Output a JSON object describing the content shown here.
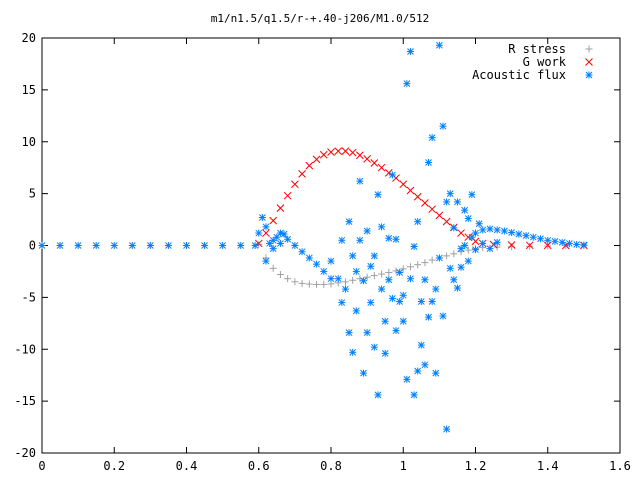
{
  "chart_data": {
    "type": "scatter",
    "title": "m1/n1.5/q1.5/r-+.40-j206/M1.0/512",
    "xlabel": "",
    "ylabel": "",
    "xlim": [
      0,
      1.6
    ],
    "ylim": [
      -20,
      20
    ],
    "xticks": [
      "0",
      "0.2",
      "0.4",
      "0.6",
      "0.8",
      "1",
      "1.2",
      "1.4",
      "1.6"
    ],
    "yticks": [
      "20",
      "15",
      "10",
      "5",
      "0",
      "-5",
      "-10",
      "-15",
      "-20"
    ],
    "grid": false,
    "legend_position": "top-right",
    "series": [
      {
        "name": "R stress",
        "marker": "plus",
        "color": "#a0a0a0",
        "points": [
          [
            0.6,
            0.1
          ],
          [
            0.62,
            -1.2
          ],
          [
            0.64,
            -2.2
          ],
          [
            0.66,
            -2.8
          ],
          [
            0.68,
            -3.2
          ],
          [
            0.7,
            -3.5
          ],
          [
            0.72,
            -3.65
          ],
          [
            0.74,
            -3.72
          ],
          [
            0.76,
            -3.75
          ],
          [
            0.78,
            -3.75
          ],
          [
            0.8,
            -3.7
          ],
          [
            0.82,
            -3.6
          ],
          [
            0.84,
            -3.5
          ],
          [
            0.86,
            -3.35
          ],
          [
            0.88,
            -3.2
          ],
          [
            0.9,
            -3.05
          ],
          [
            0.92,
            -2.9
          ],
          [
            0.94,
            -2.75
          ],
          [
            0.96,
            -2.6
          ],
          [
            0.98,
            -2.45
          ],
          [
            1.0,
            -2.25
          ],
          [
            1.02,
            -2.05
          ],
          [
            1.04,
            -1.85
          ],
          [
            1.06,
            -1.65
          ],
          [
            1.08,
            -1.4
          ],
          [
            1.1,
            -1.2
          ],
          [
            1.12,
            -1.0
          ],
          [
            1.14,
            -0.8
          ],
          [
            1.16,
            -0.6
          ],
          [
            1.18,
            -0.45
          ],
          [
            1.2,
            -0.3
          ],
          [
            1.22,
            -0.2
          ],
          [
            1.26,
            -0.15
          ],
          [
            1.3,
            -0.12
          ],
          [
            1.35,
            -0.08
          ],
          [
            1.4,
            -0.05
          ],
          [
            1.45,
            -0.02
          ],
          [
            1.5,
            0.0
          ]
        ]
      },
      {
        "name": "G work",
        "marker": "cross",
        "color": "#ff0000",
        "points": [
          [
            0.6,
            0.2
          ],
          [
            0.62,
            1.2
          ],
          [
            0.64,
            2.4
          ],
          [
            0.66,
            3.6
          ],
          [
            0.68,
            4.8
          ],
          [
            0.7,
            5.9
          ],
          [
            0.72,
            6.9
          ],
          [
            0.74,
            7.7
          ],
          [
            0.76,
            8.3
          ],
          [
            0.78,
            8.75
          ],
          [
            0.8,
            9.0
          ],
          [
            0.82,
            9.1
          ],
          [
            0.84,
            9.1
          ],
          [
            0.86,
            8.95
          ],
          [
            0.88,
            8.7
          ],
          [
            0.9,
            8.35
          ],
          [
            0.92,
            7.95
          ],
          [
            0.94,
            7.5
          ],
          [
            0.96,
            7.0
          ],
          [
            0.98,
            6.5
          ],
          [
            1.0,
            5.9
          ],
          [
            1.02,
            5.3
          ],
          [
            1.04,
            4.7
          ],
          [
            1.06,
            4.1
          ],
          [
            1.08,
            3.5
          ],
          [
            1.1,
            2.9
          ],
          [
            1.12,
            2.3
          ],
          [
            1.14,
            1.75
          ],
          [
            1.16,
            1.2
          ],
          [
            1.18,
            0.8
          ],
          [
            1.2,
            0.4
          ],
          [
            1.22,
            0.2
          ],
          [
            1.25,
            0.1
          ],
          [
            1.3,
            0.05
          ],
          [
            1.35,
            0.02
          ],
          [
            1.4,
            0.01
          ],
          [
            1.45,
            0.0
          ],
          [
            1.5,
            0.0
          ]
        ]
      },
      {
        "name": "Acoustic flux",
        "marker": "star",
        "color": "#0080ff",
        "points": [
          [
            0.0,
            0.0
          ],
          [
            0.05,
            0.0
          ],
          [
            0.1,
            0.0
          ],
          [
            0.15,
            0.0
          ],
          [
            0.2,
            0.0
          ],
          [
            0.25,
            0.0
          ],
          [
            0.3,
            0.0
          ],
          [
            0.35,
            0.0
          ],
          [
            0.4,
            0.0
          ],
          [
            0.45,
            0.0
          ],
          [
            0.5,
            0.0
          ],
          [
            0.55,
            0.0
          ],
          [
            0.59,
            0.0
          ],
          [
            0.6,
            1.2
          ],
          [
            0.61,
            2.7
          ],
          [
            0.62,
            1.8
          ],
          [
            0.63,
            0.2
          ],
          [
            0.64,
            0.5
          ],
          [
            0.65,
            0.8
          ],
          [
            0.66,
            1.2
          ],
          [
            0.67,
            1.1
          ],
          [
            0.68,
            0.6
          ],
          [
            0.7,
            0.0
          ],
          [
            0.72,
            -0.6
          ],
          [
            0.74,
            -1.2
          ],
          [
            0.76,
            -1.8
          ],
          [
            0.78,
            -2.5
          ],
          [
            0.8,
            -3.2
          ],
          [
            0.62,
            -1.5
          ],
          [
            0.64,
            -0.3
          ],
          [
            0.66,
            0.2
          ],
          [
            0.8,
            -1.5
          ],
          [
            0.82,
            -3.2
          ],
          [
            0.83,
            0.5
          ],
          [
            0.83,
            -5.5
          ],
          [
            0.84,
            -4.2
          ],
          [
            0.85,
            -8.4
          ],
          [
            0.85,
            2.3
          ],
          [
            0.86,
            -1.0
          ],
          [
            0.86,
            -10.3
          ],
          [
            0.87,
            -6.3
          ],
          [
            0.87,
            -2.5
          ],
          [
            0.88,
            6.2
          ],
          [
            0.88,
            0.5
          ],
          [
            0.89,
            -12.3
          ],
          [
            0.89,
            -3.4
          ],
          [
            0.9,
            -8.4
          ],
          [
            0.9,
            1.4
          ],
          [
            0.91,
            -5.5
          ],
          [
            0.91,
            -2.0
          ],
          [
            0.92,
            -1.0
          ],
          [
            0.92,
            -9.8
          ],
          [
            0.93,
            -14.4
          ],
          [
            0.93,
            4.9
          ],
          [
            0.94,
            -4.2
          ],
          [
            0.94,
            1.8
          ],
          [
            0.95,
            -7.3
          ],
          [
            0.95,
            -10.4
          ],
          [
            0.96,
            -3.3
          ],
          [
            0.96,
            0.7
          ],
          [
            0.97,
            -5.1
          ],
          [
            0.97,
            6.8
          ],
          [
            0.98,
            -8.2
          ],
          [
            0.98,
            0.6
          ],
          [
            0.99,
            -2.6
          ],
          [
            0.99,
            -5.4
          ],
          [
            1.0,
            -7.3
          ],
          [
            1.0,
            -4.8
          ],
          [
            1.01,
            -12.9
          ],
          [
            1.01,
            15.6
          ],
          [
            1.02,
            18.7
          ],
          [
            1.02,
            -3.2
          ],
          [
            1.03,
            -14.4
          ],
          [
            1.03,
            -0.1
          ],
          [
            1.04,
            -12.1
          ],
          [
            1.04,
            2.3
          ],
          [
            1.05,
            -5.4
          ],
          [
            1.05,
            -9.6
          ],
          [
            1.06,
            -3.3
          ],
          [
            1.06,
            -11.5
          ],
          [
            1.07,
            8.0
          ],
          [
            1.07,
            -6.9
          ],
          [
            1.08,
            10.4
          ],
          [
            1.08,
            -5.4
          ],
          [
            1.09,
            -12.3
          ],
          [
            1.09,
            -4.2
          ],
          [
            1.1,
            19.3
          ],
          [
            1.1,
            -1.2
          ],
          [
            1.11,
            11.5
          ],
          [
            1.11,
            -6.8
          ],
          [
            1.12,
            4.2
          ],
          [
            1.12,
            -17.7
          ],
          [
            1.13,
            -2.2
          ],
          [
            1.13,
            5.0
          ],
          [
            1.14,
            -3.3
          ],
          [
            1.14,
            1.7
          ],
          [
            1.15,
            4.2
          ],
          [
            1.15,
            -4.1
          ],
          [
            1.16,
            -2.1
          ],
          [
            1.16,
            -0.3
          ],
          [
            1.17,
            3.4
          ],
          [
            1.17,
            0.0
          ],
          [
            1.18,
            -1.5
          ],
          [
            1.18,
            2.6
          ],
          [
            1.19,
            4.9
          ],
          [
            1.19,
            0.8
          ],
          [
            1.2,
            1.2
          ],
          [
            1.21,
            2.1
          ],
          [
            1.22,
            1.5
          ],
          [
            1.24,
            1.6
          ],
          [
            1.26,
            1.5
          ],
          [
            1.28,
            1.4
          ],
          [
            1.3,
            1.25
          ],
          [
            1.32,
            1.1
          ],
          [
            1.34,
            0.95
          ],
          [
            1.36,
            0.8
          ],
          [
            1.38,
            0.65
          ],
          [
            1.4,
            0.5
          ],
          [
            1.42,
            0.4
          ],
          [
            1.44,
            0.3
          ],
          [
            1.46,
            0.2
          ],
          [
            1.48,
            0.1
          ],
          [
            1.5,
            0.05
          ],
          [
            1.2,
            -0.4
          ],
          [
            1.22,
            0.2
          ],
          [
            1.24,
            -0.3
          ],
          [
            1.26,
            0.3
          ]
        ]
      }
    ]
  }
}
